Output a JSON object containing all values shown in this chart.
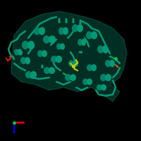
{
  "background_color": "#000000",
  "protein_color": "#009977",
  "protein_dark": "#007755",
  "ligand_color_yellow": "#cccc00",
  "ligand_color_red": "#cc2200",
  "ligand_color_orange": "#cc7700",
  "ligand_color_green": "#00cc44",
  "arrow_red": "#dd0000",
  "arrow_blue": "#0000dd",
  "arrow_orange": "#cc6600",
  "figsize": [
    2.0,
    2.0
  ],
  "dpi": 100
}
